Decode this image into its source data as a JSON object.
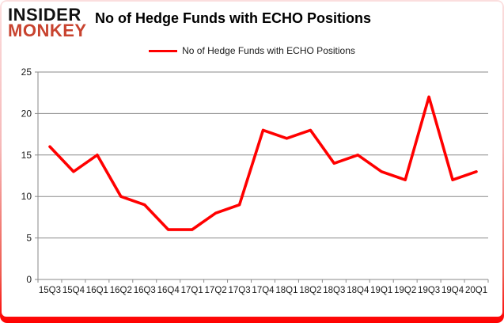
{
  "logo": {
    "line1": "INSIDER",
    "line2": "MONKEY"
  },
  "title": "No of Hedge Funds with ECHO Positions",
  "legend": {
    "label": "No of Hedge Funds with ECHO Positions"
  },
  "colors": {
    "line": "#FF0000",
    "grid": "#8a8a8a",
    "axis": "#8a8a8a",
    "axis_text": "#1a1a1a",
    "logo_red": "#C8432F"
  },
  "chart_data": {
    "type": "line",
    "title": "No of Hedge Funds with ECHO Positions",
    "categories": [
      "15Q3",
      "15Q4",
      "16Q1",
      "16Q2",
      "16Q3",
      "16Q4",
      "17Q1",
      "17Q2",
      "17Q3",
      "17Q4",
      "18Q1",
      "18Q2",
      "18Q3",
      "18Q4",
      "19Q1",
      "19Q2",
      "19Q3",
      "19Q4",
      "20Q1"
    ],
    "series": [
      {
        "name": "No of Hedge Funds with ECHO Positions",
        "values": [
          16,
          13,
          15,
          10,
          9,
          6,
          6,
          8,
          9,
          18,
          17,
          18,
          14,
          15,
          13,
          12,
          22,
          12,
          13
        ]
      }
    ],
    "xlabel": "",
    "ylabel": "",
    "ylim": [
      0,
      25
    ],
    "yticks": [
      0,
      5,
      10,
      15,
      20,
      25
    ],
    "grid": "horizontal",
    "legend_position": "top"
  }
}
